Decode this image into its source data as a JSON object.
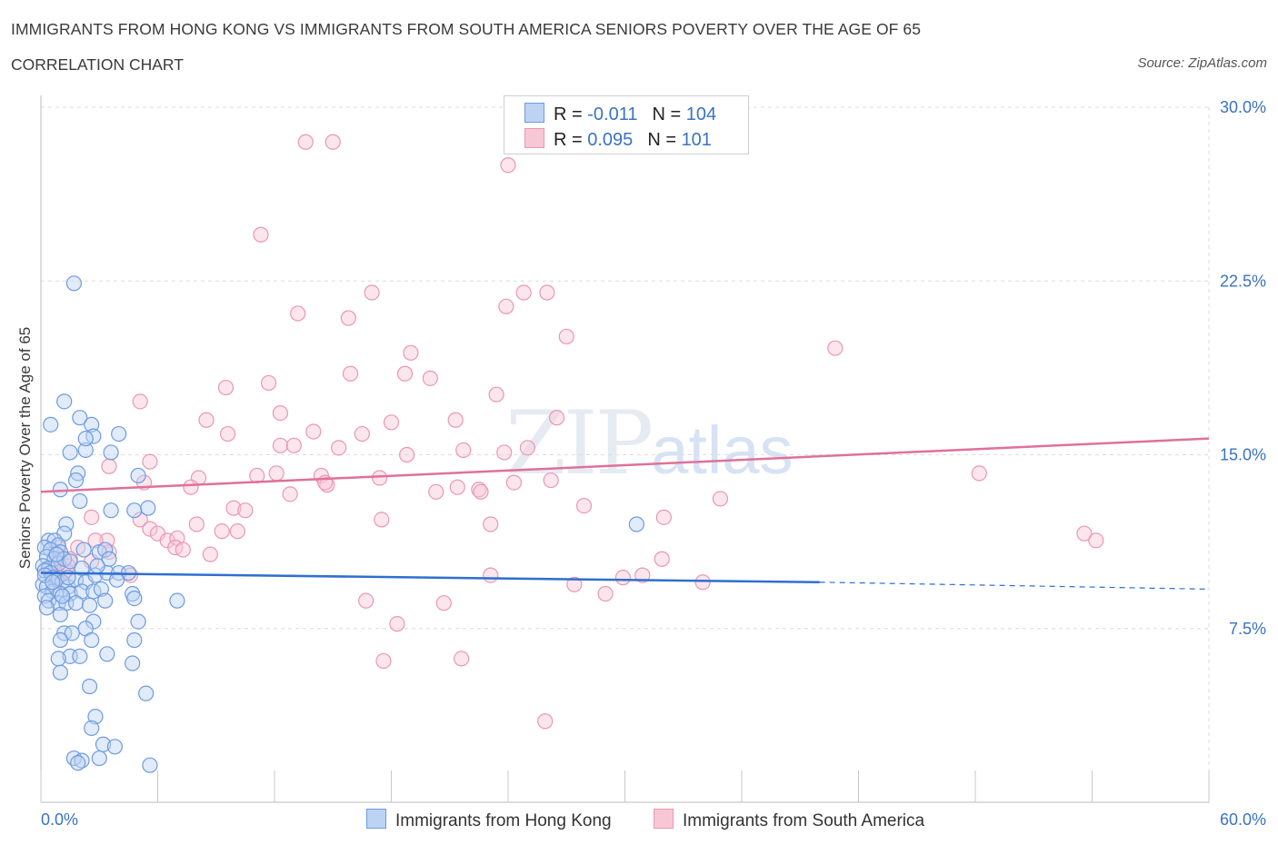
{
  "header": {
    "title": "IMMIGRANTS FROM HONG KONG VS IMMIGRANTS FROM SOUTH AMERICA SENIORS POVERTY OVER THE AGE OF 65",
    "subtitle": "CORRELATION CHART",
    "source": "Source: ZipAtlas.com"
  },
  "watermark": {
    "zip": "ZIP",
    "atlas": "atlas"
  },
  "legend": {
    "rows": [
      {
        "r_label": "R =",
        "r_value": "-0.011",
        "n_label": "N =",
        "n_value": "104"
      },
      {
        "r_label": "R =",
        "r_value": "0.095",
        "n_label": "N =",
        "n_value": "101"
      }
    ]
  },
  "bottom_legend": {
    "items": [
      {
        "label": "Immigrants from Hong Kong"
      },
      {
        "label": "Immigrants from South America"
      }
    ]
  },
  "colors": {
    "blue_fill": "#bdd3f3",
    "blue_stroke": "#6d9be0",
    "blue_line": "#2f6fd0",
    "pink_fill": "#f7c7d6",
    "pink_stroke": "#eb97b1",
    "pink_line": "#e0709a",
    "axis_label": "#3a72c4",
    "grid": "#dcdcdc"
  },
  "chart_data": {
    "type": "scatter",
    "title": "IMMIGRANTS FROM HONG KONG VS IMMIGRANTS FROM SOUTH AMERICA SENIORS POVERTY OVER THE AGE OF 65",
    "xlabel": "",
    "ylabel": "Seniors Poverty Over the Age of 65",
    "xlim": [
      0,
      60
    ],
    "ylim": [
      0,
      30
    ],
    "x_tick_labels": [
      "0.0%",
      "60.0%"
    ],
    "y_ticks": [
      7.5,
      15.0,
      22.5,
      30.0
    ],
    "y_tick_labels": [
      "7.5%",
      "15.0%",
      "22.5%",
      "30.0%"
    ],
    "legend_position": "top-center",
    "series": [
      {
        "name": "Immigrants from Hong Kong",
        "R": -0.011,
        "N": 104,
        "trend": {
          "x0": 0,
          "y0": 9.9,
          "x1": 40,
          "y1": 9.5,
          "dashed_to_x": 60,
          "dashed_to_y": 9.2
        },
        "points": [
          [
            1.7,
            22.4
          ],
          [
            1.2,
            17.3
          ],
          [
            0.5,
            16.3
          ],
          [
            2.0,
            16.6
          ],
          [
            2.6,
            16.3
          ],
          [
            2.7,
            15.8
          ],
          [
            1.5,
            15.1
          ],
          [
            2.3,
            15.2
          ],
          [
            1.9,
            14.2
          ],
          [
            1.8,
            13.9
          ],
          [
            2.3,
            15.7
          ],
          [
            3.6,
            15.1
          ],
          [
            4.0,
            15.9
          ],
          [
            5.0,
            14.1
          ],
          [
            1.0,
            13.5
          ],
          [
            2.0,
            13.0
          ],
          [
            3.6,
            12.6
          ],
          [
            4.8,
            12.6
          ],
          [
            5.5,
            12.7
          ],
          [
            1.3,
            12.0
          ],
          [
            1.2,
            11.6
          ],
          [
            0.4,
            11.3
          ],
          [
            0.7,
            11.3
          ],
          [
            0.9,
            11.1
          ],
          [
            0.2,
            11.0
          ],
          [
            0.5,
            10.9
          ],
          [
            1.0,
            10.8
          ],
          [
            0.3,
            10.6
          ],
          [
            0.7,
            10.5
          ],
          [
            0.1,
            10.2
          ],
          [
            0.4,
            10.1
          ],
          [
            0.9,
            10.3
          ],
          [
            1.2,
            10.5
          ],
          [
            1.5,
            10.4
          ],
          [
            2.1,
            10.1
          ],
          [
            2.2,
            10.9
          ],
          [
            3.0,
            10.8
          ],
          [
            3.3,
            10.9
          ],
          [
            3.5,
            10.5
          ],
          [
            0.2,
            10.0
          ],
          [
            0.5,
            9.9
          ],
          [
            0.6,
            9.7
          ],
          [
            0.8,
            9.6
          ],
          [
            1.1,
            9.5
          ],
          [
            1.4,
            9.3
          ],
          [
            1.8,
            9.6
          ],
          [
            2.3,
            9.5
          ],
          [
            2.8,
            9.8
          ],
          [
            3.4,
            9.9
          ],
          [
            4.0,
            9.9
          ],
          [
            4.5,
            9.9
          ],
          [
            0.1,
            9.4
          ],
          [
            0.3,
            9.3
          ],
          [
            0.6,
            9.1
          ],
          [
            1.0,
            9.0
          ],
          [
            1.5,
            9.0
          ],
          [
            2.1,
            9.1
          ],
          [
            2.7,
            9.1
          ],
          [
            3.1,
            9.2
          ],
          [
            4.7,
            9.0
          ],
          [
            0.2,
            8.9
          ],
          [
            0.4,
            8.7
          ],
          [
            0.9,
            8.6
          ],
          [
            1.3,
            8.6
          ],
          [
            1.8,
            8.6
          ],
          [
            2.5,
            8.5
          ],
          [
            3.3,
            8.7
          ],
          [
            4.8,
            8.8
          ],
          [
            7.0,
            8.7
          ],
          [
            1.0,
            8.1
          ],
          [
            2.7,
            7.8
          ],
          [
            1.2,
            7.3
          ],
          [
            1.6,
            7.3
          ],
          [
            2.3,
            7.5
          ],
          [
            5.0,
            7.8
          ],
          [
            1.0,
            7.0
          ],
          [
            2.6,
            7.0
          ],
          [
            4.8,
            7.0
          ],
          [
            1.5,
            6.3
          ],
          [
            2.0,
            6.3
          ],
          [
            3.4,
            6.4
          ],
          [
            0.9,
            6.2
          ],
          [
            4.7,
            6.0
          ],
          [
            1.0,
            5.6
          ],
          [
            2.5,
            5.0
          ],
          [
            5.4,
            4.7
          ],
          [
            2.8,
            3.7
          ],
          [
            2.6,
            3.2
          ],
          [
            3.2,
            2.5
          ],
          [
            3.8,
            2.4
          ],
          [
            1.7,
            1.9
          ],
          [
            2.1,
            1.8
          ],
          [
            1.9,
            1.7
          ],
          [
            3.0,
            1.9
          ],
          [
            5.6,
            1.6
          ],
          [
            30.6,
            12.0
          ],
          [
            0.2,
            9.8
          ],
          [
            0.6,
            9.5
          ],
          [
            1.4,
            9.7
          ],
          [
            2.9,
            10.2
          ],
          [
            0.8,
            10.7
          ],
          [
            3.9,
            9.6
          ],
          [
            1.1,
            8.9
          ],
          [
            0.3,
            8.4
          ]
        ]
      },
      {
        "name": "Immigrants from South America",
        "R": 0.095,
        "N": 101,
        "trend": {
          "x0": 0,
          "y0": 13.4,
          "x1": 60,
          "y1": 15.7
        },
        "points": [
          [
            13.6,
            28.5
          ],
          [
            15.0,
            28.5
          ],
          [
            24.0,
            27.5
          ],
          [
            11.3,
            24.5
          ],
          [
            17.0,
            22.0
          ],
          [
            24.8,
            22.0
          ],
          [
            26.0,
            22.0
          ],
          [
            13.2,
            21.1
          ],
          [
            15.8,
            20.9
          ],
          [
            23.9,
            21.4
          ],
          [
            27.0,
            20.1
          ],
          [
            40.8,
            19.6
          ],
          [
            19.0,
            19.4
          ],
          [
            18.7,
            18.5
          ],
          [
            15.9,
            18.5
          ],
          [
            20.0,
            18.3
          ],
          [
            9.5,
            17.9
          ],
          [
            11.7,
            18.1
          ],
          [
            5.1,
            17.3
          ],
          [
            23.4,
            17.6
          ],
          [
            12.3,
            16.8
          ],
          [
            18.0,
            16.4
          ],
          [
            26.5,
            16.6
          ],
          [
            8.5,
            16.5
          ],
          [
            21.3,
            16.5
          ],
          [
            14.0,
            16.0
          ],
          [
            9.6,
            15.9
          ],
          [
            16.5,
            15.9
          ],
          [
            12.3,
            15.4
          ],
          [
            13.0,
            15.4
          ],
          [
            15.3,
            15.3
          ],
          [
            21.7,
            15.2
          ],
          [
            23.8,
            15.1
          ],
          [
            25.0,
            15.3
          ],
          [
            5.6,
            14.7
          ],
          [
            18.8,
            15.0
          ],
          [
            3.5,
            14.5
          ],
          [
            48.2,
            14.2
          ],
          [
            12.1,
            14.2
          ],
          [
            11.1,
            14.1
          ],
          [
            14.4,
            14.1
          ],
          [
            17.4,
            14.0
          ],
          [
            8.1,
            14.0
          ],
          [
            5.3,
            13.8
          ],
          [
            14.7,
            13.7
          ],
          [
            14.6,
            13.8
          ],
          [
            21.4,
            13.6
          ],
          [
            24.3,
            13.8
          ],
          [
            26.2,
            13.9
          ],
          [
            7.7,
            13.6
          ],
          [
            12.8,
            13.3
          ],
          [
            20.3,
            13.4
          ],
          [
            22.5,
            13.5
          ],
          [
            22.6,
            13.4
          ],
          [
            34.9,
            13.1
          ],
          [
            27.9,
            12.8
          ],
          [
            9.9,
            12.7
          ],
          [
            10.5,
            12.6
          ],
          [
            2.6,
            12.3
          ],
          [
            5.1,
            12.2
          ],
          [
            17.5,
            12.2
          ],
          [
            23.1,
            12.0
          ],
          [
            32.0,
            12.3
          ],
          [
            8.0,
            12.0
          ],
          [
            5.6,
            11.8
          ],
          [
            6.0,
            11.6
          ],
          [
            9.3,
            11.7
          ],
          [
            10.1,
            11.7
          ],
          [
            6.5,
            11.3
          ],
          [
            7.0,
            11.4
          ],
          [
            3.4,
            11.3
          ],
          [
            2.8,
            11.3
          ],
          [
            6.9,
            11.0
          ],
          [
            7.3,
            10.9
          ],
          [
            0.9,
            11.0
          ],
          [
            1.9,
            11.0
          ],
          [
            3.5,
            10.8
          ],
          [
            53.6,
            11.6
          ],
          [
            54.2,
            11.3
          ],
          [
            8.7,
            10.7
          ],
          [
            31.9,
            10.5
          ],
          [
            0.8,
            10.4
          ],
          [
            1.5,
            10.5
          ],
          [
            2.6,
            10.4
          ],
          [
            0.5,
            10.1
          ],
          [
            1.3,
            10.0
          ],
          [
            4.6,
            9.8
          ],
          [
            23.1,
            9.8
          ],
          [
            30.9,
            9.8
          ],
          [
            29.9,
            9.7
          ],
          [
            34.0,
            9.5
          ],
          [
            27.4,
            9.4
          ],
          [
            0.9,
            9.7
          ],
          [
            29.0,
            9.0
          ],
          [
            16.7,
            8.7
          ],
          [
            20.7,
            8.6
          ],
          [
            18.3,
            7.7
          ],
          [
            17.6,
            6.1
          ],
          [
            21.6,
            6.2
          ],
          [
            25.9,
            3.5
          ],
          [
            1.4,
            10.2
          ]
        ]
      }
    ]
  }
}
